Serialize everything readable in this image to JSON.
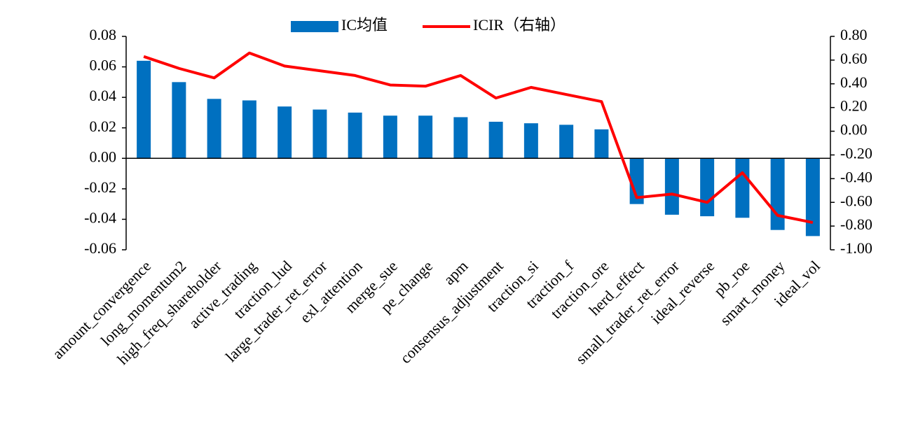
{
  "chart_data": {
    "type": "bar_line",
    "categories": [
      "amount_convergence",
      "long_momentum2",
      "high_freq_shareholder",
      "active_trading",
      "traction_lud",
      "large_trader_ret_error",
      "exl_attention",
      "merge_sue",
      "pe_change",
      "apm",
      "consensus_adjustment",
      "traction_si",
      "traction_f",
      "traction_ore",
      "herd_effect",
      "small_trader_ret_error",
      "ideal_reverse",
      "pb_roe",
      "smart_money",
      "ideal_vol"
    ],
    "series": [
      {
        "name": "IC均值",
        "type": "bar",
        "color": "#0070c0",
        "values": [
          0.064,
          0.05,
          0.039,
          0.038,
          0.034,
          0.032,
          0.03,
          0.028,
          0.028,
          0.027,
          0.024,
          0.023,
          0.022,
          0.019,
          -0.03,
          -0.037,
          -0.038,
          -0.039,
          -0.047,
          -0.051
        ]
      },
      {
        "name": "ICIR（右轴）",
        "type": "line",
        "axis": "y2",
        "color": "#ff0000",
        "values": [
          0.63,
          0.53,
          0.45,
          0.66,
          0.55,
          0.51,
          0.47,
          0.39,
          0.38,
          0.47,
          0.28,
          0.37,
          0.31,
          0.25,
          -0.56,
          -0.53,
          -0.6,
          -0.35,
          -0.71,
          -0.77
        ]
      }
    ],
    "ylim": [
      -0.06,
      0.08
    ],
    "yticks": [
      -0.06,
      -0.04,
      -0.02,
      {
        "value": 0,
        "label": "0.00"
      },
      0.02,
      0.04,
      0.06,
      0.08
    ],
    "y2lim": [
      -1.0,
      0.8
    ],
    "y2ticks": [
      {
        "value": -1.0,
        "label": "-1.00"
      },
      {
        "value": -0.8,
        "label": "-0.80"
      },
      {
        "value": -0.6,
        "label": "-0.60"
      },
      {
        "value": -0.4,
        "label": "-0.40"
      },
      {
        "value": -0.2,
        "label": "-0.20"
      },
      {
        "value": 0,
        "label": "0.00"
      },
      {
        "value": 0.2,
        "label": "0.20"
      },
      {
        "value": 0.4,
        "label": "0.40"
      },
      {
        "value": 0.6,
        "label": "0.60"
      },
      {
        "value": 0.8,
        "label": "0.80"
      }
    ],
    "legend": "top"
  }
}
